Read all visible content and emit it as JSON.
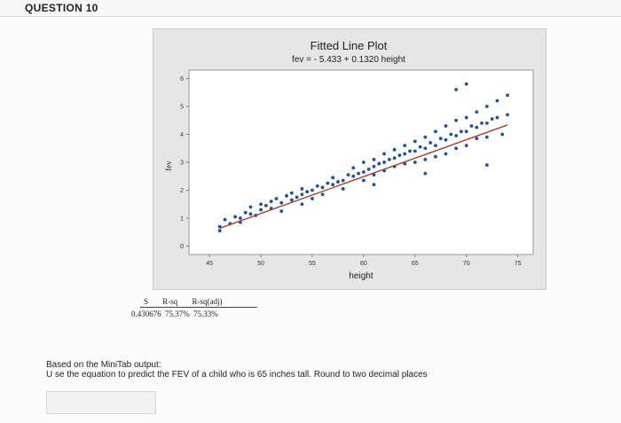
{
  "question": {
    "title": "QUESTION 10"
  },
  "chart_data": {
    "type": "scatter",
    "title": "Fitted Line Plot",
    "subtitle": "fev = - 5.433 + 0.1320 height",
    "xlabel": "height",
    "ylabel": "fev",
    "xlim": [
      43,
      76.5
    ],
    "ylim": [
      -0.3,
      6.3
    ],
    "x_ticks": [
      45,
      50,
      55,
      60,
      65,
      70,
      75
    ],
    "y_ticks": [
      0,
      1,
      2,
      3,
      4,
      5,
      6
    ],
    "fit": {
      "intercept": -5.433,
      "slope": 0.132,
      "x_range": [
        46,
        74
      ]
    },
    "series": [
      {
        "marker_color": "#1a50a8",
        "points": [
          [
            46,
            0.7
          ],
          [
            46.5,
            0.95
          ],
          [
            47,
            0.8
          ],
          [
            47.5,
            1.05
          ],
          [
            48,
            1.0
          ],
          [
            48,
            0.85
          ],
          [
            48.5,
            1.2
          ],
          [
            49,
            1.15
          ],
          [
            49,
            1.4
          ],
          [
            49.5,
            1.1
          ],
          [
            50,
            1.3
          ],
          [
            50,
            1.5
          ],
          [
            50.5,
            1.45
          ],
          [
            51,
            1.35
          ],
          [
            51,
            1.6
          ],
          [
            51.5,
            1.7
          ],
          [
            52,
            1.55
          ],
          [
            52,
            1.25
          ],
          [
            52.5,
            1.8
          ],
          [
            53,
            1.65
          ],
          [
            53,
            1.9
          ],
          [
            53.5,
            1.75
          ],
          [
            54,
            1.85
          ],
          [
            54,
            2.05
          ],
          [
            54.5,
            1.95
          ],
          [
            55,
            2.0
          ],
          [
            55,
            1.7
          ],
          [
            55.5,
            2.15
          ],
          [
            56,
            2.1
          ],
          [
            56,
            1.85
          ],
          [
            56.5,
            2.25
          ],
          [
            57,
            2.2
          ],
          [
            57,
            2.45
          ],
          [
            57.5,
            2.3
          ],
          [
            58,
            2.35
          ],
          [
            58,
            2.05
          ],
          [
            58.5,
            2.55
          ],
          [
            59,
            2.5
          ],
          [
            59,
            2.8
          ],
          [
            59.5,
            2.6
          ],
          [
            60,
            2.65
          ],
          [
            60,
            2.35
          ],
          [
            60,
            3.0
          ],
          [
            60.5,
            2.75
          ],
          [
            61,
            2.85
          ],
          [
            61,
            3.1
          ],
          [
            61,
            2.55
          ],
          [
            61.5,
            2.95
          ],
          [
            62,
            3.0
          ],
          [
            62,
            2.7
          ],
          [
            62,
            3.3
          ],
          [
            62.5,
            3.1
          ],
          [
            63,
            3.15
          ],
          [
            63,
            2.85
          ],
          [
            63,
            3.45
          ],
          [
            63.5,
            3.25
          ],
          [
            64,
            3.3
          ],
          [
            64,
            2.95
          ],
          [
            64,
            3.6
          ],
          [
            64.5,
            3.4
          ],
          [
            65,
            3.4
          ],
          [
            65,
            3.0
          ],
          [
            65,
            3.75
          ],
          [
            65.5,
            3.55
          ],
          [
            66,
            3.5
          ],
          [
            66,
            3.9
          ],
          [
            66,
            3.1
          ],
          [
            66.5,
            3.7
          ],
          [
            67,
            3.6
          ],
          [
            67,
            4.1
          ],
          [
            67,
            3.2
          ],
          [
            67.5,
            3.85
          ],
          [
            68,
            3.8
          ],
          [
            68,
            4.3
          ],
          [
            68,
            3.3
          ],
          [
            68.5,
            4.0
          ],
          [
            69,
            3.95
          ],
          [
            69,
            4.5
          ],
          [
            69,
            3.5
          ],
          [
            69.5,
            4.1
          ],
          [
            70,
            4.1
          ],
          [
            70,
            4.6
          ],
          [
            70,
            3.6
          ],
          [
            70.5,
            4.3
          ],
          [
            71,
            4.25
          ],
          [
            71,
            4.8
          ],
          [
            71,
            3.85
          ],
          [
            71.5,
            4.4
          ],
          [
            72,
            4.4
          ],
          [
            72,
            5.0
          ],
          [
            72,
            3.9
          ],
          [
            72.5,
            4.55
          ],
          [
            73,
            4.6
          ],
          [
            73,
            5.2
          ],
          [
            74,
            4.7
          ],
          [
            74,
            5.4
          ],
          [
            73.5,
            4.0
          ],
          [
            46,
            0.55
          ],
          [
            54,
            1.5
          ],
          [
            61,
            2.2
          ],
          [
            66,
            2.6
          ],
          [
            69,
            5.6
          ],
          [
            70,
            5.8
          ],
          [
            72,
            2.9
          ]
        ]
      }
    ]
  },
  "stats": {
    "headers": [
      "S",
      "R-sq",
      "R-sq(adj)"
    ],
    "values": [
      "0.430676",
      "75.37%",
      "75.33%"
    ]
  },
  "prompt": {
    "line1": "Based on the MiniTab output:",
    "line2": "U se the equation to predict the FEV of a child who is 65 inches tall. Round to two decimal places"
  },
  "answer": {
    "value": ""
  }
}
